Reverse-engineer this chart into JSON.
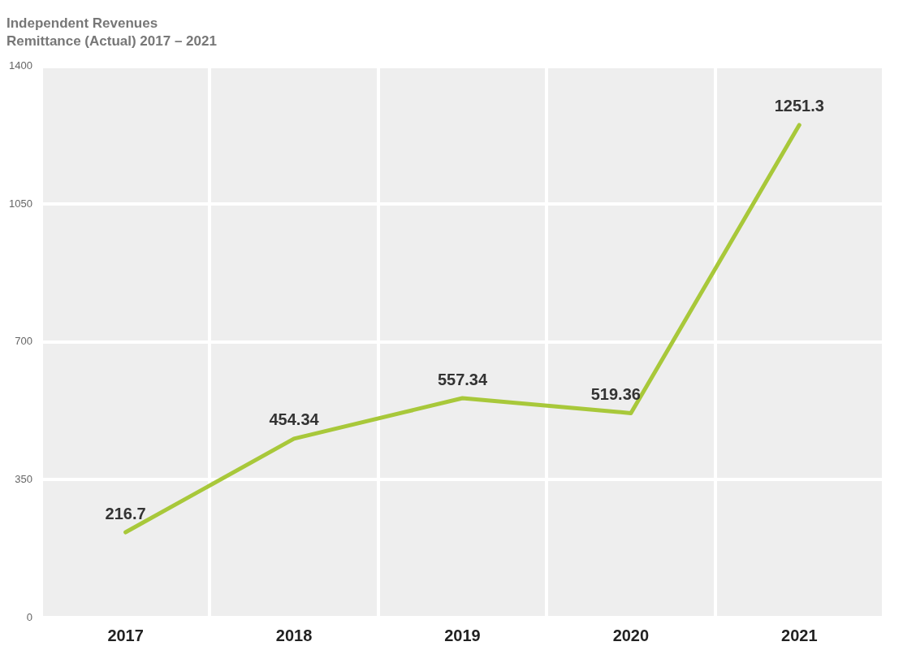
{
  "chart_data": {
    "type": "line",
    "title": "Independent Revenues",
    "subtitle": "Remittance (Actual) 2017 – 2021",
    "categories": [
      "2017",
      "2018",
      "2019",
      "2020",
      "2021"
    ],
    "series": [
      {
        "color": "#a8c83a",
        "values": [
          216.7,
          454.34,
          557.34,
          519.36,
          1251.3
        ]
      }
    ],
    "ylim": [
      0,
      1400
    ],
    "yticks": [
      0,
      350,
      700,
      1050,
      1400
    ],
    "grid": true,
    "data_labels": true,
    "marker": "none",
    "line_style": "solid",
    "legend": false
  }
}
